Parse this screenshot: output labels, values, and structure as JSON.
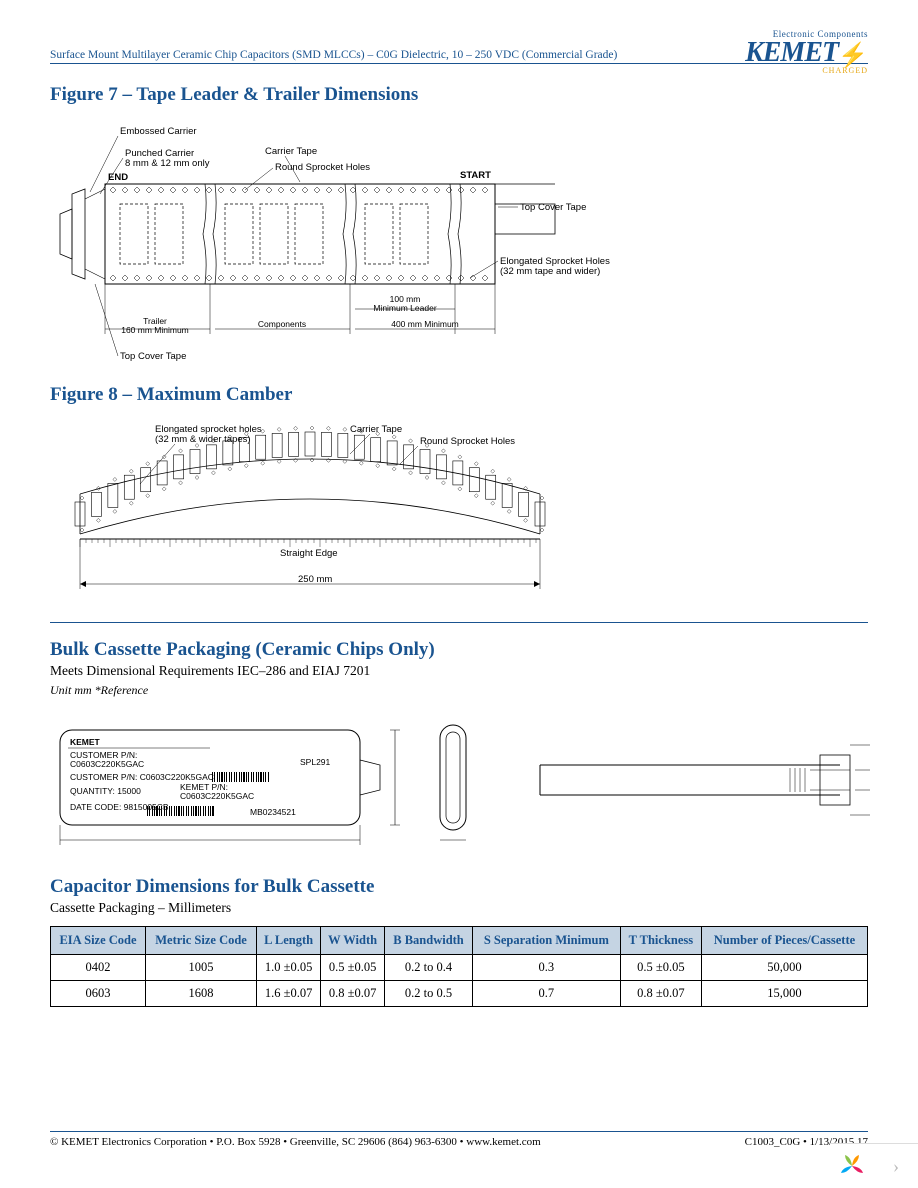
{
  "header": {
    "doc_title": "Surface Mount Multilayer Ceramic Chip Capacitors (SMD MLCCs) – C0G Dielectric, 10 – 250 VDC (Commercial Grade)",
    "logo_top": "Electronic Components",
    "logo_main": "KEMET",
    "logo_sub": "CHARGED"
  },
  "fig7": {
    "title": "Figure 7 – Tape Leader & Trailer Dimensions",
    "labels": {
      "embossed": "Embossed Carrier",
      "punched": "Punched Carrier\n8 mm & 12 mm only",
      "carrier_tape": "Carrier Tape",
      "round_holes": "Round Sprocket Holes",
      "end": "END",
      "start": "START",
      "top_cover": "Top Cover Tape",
      "elong": "Elongated Sprocket Holes\n(32 mm tape and wider)",
      "trailer": "Trailer\n160 mm Minimum",
      "components": "Components",
      "min_leader": "100 mm\nMinimum Leader",
      "four_hundred": "400 mm Minimum",
      "top_cover2": "Top Cover Tape"
    }
  },
  "fig8": {
    "title": "Figure 8 – Maximum Camber",
    "labels": {
      "elong": "Elongated sprocket holes\n(32 mm & wider tapes)",
      "carrier_tape": "Carrier Tape",
      "round_holes": "Round Sprocket Holes",
      "straight": "Straight Edge",
      "dim": "250 mm"
    }
  },
  "bulk": {
    "title": "Bulk Cassette Packaging (Ceramic Chips Only)",
    "sub": "Meets Dimensional Requirements IEC–286 and EIAJ 7201",
    "unit": "Unit mm *Reference",
    "cassette_labels": {
      "cust_pn": "CUSTOMER P/N:",
      "cust_pn_val": "C0603C220K5GAC",
      "cust_pn2": "CUSTOMER P/N: C0603C220K5GAC",
      "qty": "QUANTITY: 15000",
      "kemet_pn": "KEMET P/N:",
      "kemet_pn_val": "C0603C220K5GAC",
      "date": "DATE CODE: 9815005CB",
      "spl": "SPL291",
      "mb": "MB0234521",
      "brand": "KEMET"
    }
  },
  "dim_section": {
    "title": "Capacitor Dimensions for Bulk Cassette",
    "sub": "Cassette Packaging – Millimeters"
  },
  "table": {
    "header_bg": "#c5d4e3",
    "header_color": "#1a5490",
    "columns": [
      "EIA Size Code",
      "Metric Size Code",
      "L Length",
      "W Width",
      "B Bandwidth",
      "S Separation Minimum",
      "T Thickness",
      "Number of Pieces/Cassette"
    ],
    "rows": [
      [
        "0402",
        "1005",
        "1.0 ±0.05",
        "0.5 ±0.05",
        "0.2 to 0.4",
        "0.3",
        "0.5 ±0.05",
        "50,000"
      ],
      [
        "0603",
        "1608",
        "1.6 ±0.07",
        "0.8 ±0.07",
        "0.2 to 0.5",
        "0.7",
        "0.8 ±0.07",
        "15,000"
      ]
    ]
  },
  "footer": {
    "left": "© KEMET Electronics Corporation • P.O. Box 5928 • Greenville, SC 29606 (864) 963-6300 • www.kemet.com",
    "right": "C1003_C0G • 1/13/2015 17"
  }
}
